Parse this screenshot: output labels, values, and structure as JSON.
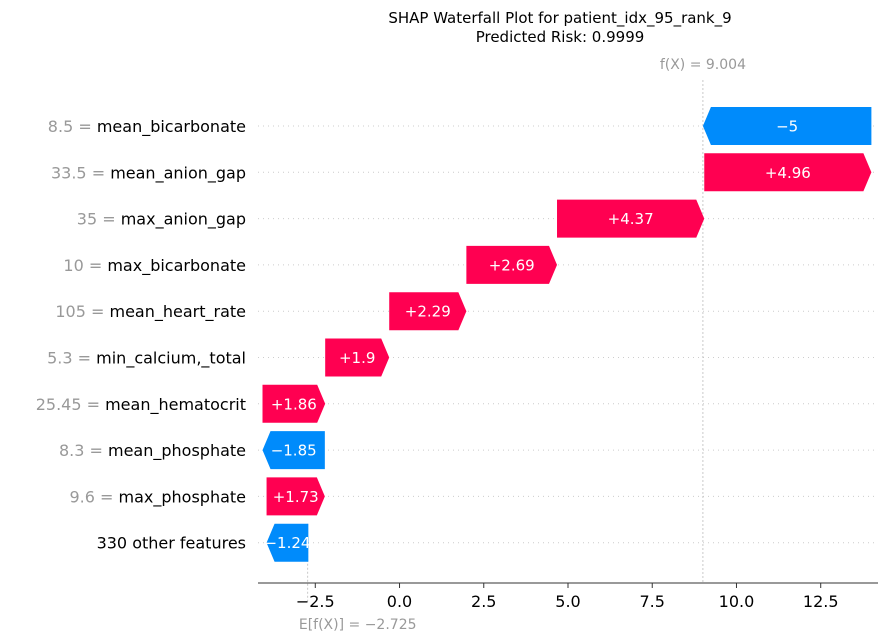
{
  "chart_data": {
    "type": "waterfall",
    "title": "SHAP Waterfall Plot for patient_idx_95_rank_9",
    "subtitle": "Predicted Risk: 0.9999",
    "fx_label": "f(X) = 9.004",
    "fx_value": 9.004,
    "base_label": "E[f(X)] = −2.725",
    "base_value": -2.725,
    "xlim": [
      -4.2,
      14.2
    ],
    "x_ticks": [
      -2.5,
      0.0,
      2.5,
      5.0,
      7.5,
      10.0,
      12.5
    ],
    "x_tick_labels": [
      "−2.5",
      "0.0",
      "2.5",
      "5.0",
      "7.5",
      "10.0",
      "12.5"
    ],
    "colors": {
      "positive": "#ff0051",
      "negative": "#008bfb",
      "muted": "#999999"
    },
    "features": [
      {
        "value": "8.5",
        "name": "mean_bicarbonate",
        "shap": -5.0,
        "label": "−5"
      },
      {
        "value": "33.5",
        "name": "mean_anion_gap",
        "shap": 4.96,
        "label": "+4.96"
      },
      {
        "value": "35",
        "name": "max_anion_gap",
        "shap": 4.37,
        "label": "+4.37"
      },
      {
        "value": "10",
        "name": "max_bicarbonate",
        "shap": 2.69,
        "label": "+2.69"
      },
      {
        "value": "105",
        "name": "mean_heart_rate",
        "shap": 2.29,
        "label": "+2.29"
      },
      {
        "value": "5.3",
        "name": "min_calcium,_total",
        "shap": 1.9,
        "label": "+1.9"
      },
      {
        "value": "25.45",
        "name": "mean_hematocrit",
        "shap": 1.86,
        "label": "+1.86"
      },
      {
        "value": "8.3",
        "name": "mean_phosphate",
        "shap": -1.85,
        "label": "−1.85"
      },
      {
        "value": "9.6",
        "name": "max_phosphate",
        "shap": 1.73,
        "label": "+1.73"
      },
      {
        "value": "",
        "name": "330 other features",
        "shap": -1.24,
        "label": "−1.24"
      }
    ]
  }
}
